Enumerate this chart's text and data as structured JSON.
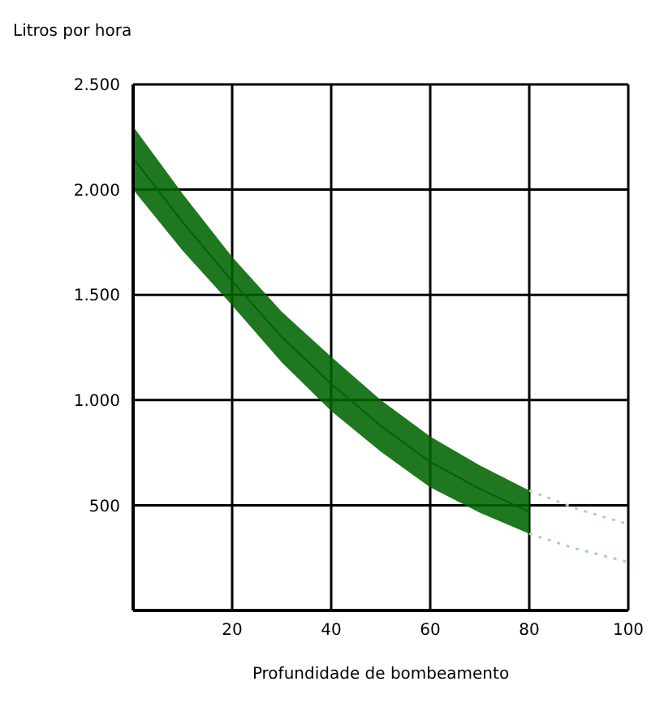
{
  "chart_data": {
    "type": "line",
    "ylabel": "Litros por hora",
    "xlabel": "Profundidade de bombeamento",
    "xlim": [
      0,
      100
    ],
    "xticks": [
      20,
      40,
      60,
      80,
      100
    ],
    "ylim": [
      0,
      2500
    ],
    "yticks": [
      500,
      {
        "value": 1000,
        "label": "1.000"
      },
      {
        "value": 1500,
        "label": "1.500"
      },
      {
        "value": 2000,
        "label": "2.000"
      },
      {
        "value": 2500,
        "label": "2.500"
      }
    ],
    "grid": true,
    "series": [
      {
        "color": "#006400",
        "x": [
          0,
          10,
          20,
          30,
          40,
          50,
          60,
          70,
          80
        ],
        "values": [
          2150,
          1845,
          1565,
          1300,
          1077,
          878,
          706,
          578,
          468
        ],
        "lower": [
          2000,
          1710,
          1450,
          1180,
          948,
          755,
          585,
          465,
          365
        ],
        "upper": [
          2300,
          1980,
          1680,
          1420,
          1206,
          1000,
          827,
          690,
          570
        ]
      },
      {
        "color": "#a8d8a8",
        "line_style": "dotted",
        "x": [
          80,
          90,
          100
        ],
        "values": [
          570,
          480,
          410
        ]
      },
      {
        "color": "#a8d8a8",
        "line_style": "dotted",
        "x": [
          80,
          90,
          100
        ],
        "values": [
          365,
          290,
          230
        ]
      }
    ]
  }
}
